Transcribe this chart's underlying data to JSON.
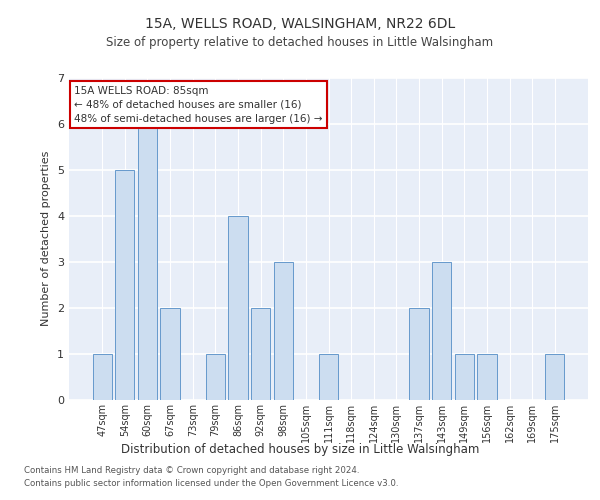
{
  "title_line1": "15A, WELLS ROAD, WALSINGHAM, NR22 6DL",
  "title_line2": "Size of property relative to detached houses in Little Walsingham",
  "xlabel": "Distribution of detached houses by size in Little Walsingham",
  "ylabel": "Number of detached properties",
  "categories": [
    "47sqm",
    "54sqm",
    "60sqm",
    "67sqm",
    "73sqm",
    "79sqm",
    "86sqm",
    "92sqm",
    "98sqm",
    "105sqm",
    "111sqm",
    "118sqm",
    "124sqm",
    "130sqm",
    "137sqm",
    "143sqm",
    "149sqm",
    "156sqm",
    "162sqm",
    "169sqm",
    "175sqm"
  ],
  "values": [
    1,
    5,
    6,
    2,
    0,
    1,
    4,
    2,
    3,
    0,
    1,
    0,
    0,
    0,
    2,
    3,
    1,
    1,
    0,
    0,
    1
  ],
  "highlight_index": 6,
  "bar_color": "#ccddf0",
  "bar_edge_color": "#6699cc",
  "bg_color": "#e8eef8",
  "grid_color": "#ffffff",
  "ylim": [
    0,
    7
  ],
  "yticks": [
    0,
    1,
    2,
    3,
    4,
    5,
    6,
    7
  ],
  "annotation_title": "15A WELLS ROAD: 85sqm",
  "annotation_line1": "← 48% of detached houses are smaller (16)",
  "annotation_line2": "48% of semi-detached houses are larger (16) →",
  "annotation_box_color": "#ffffff",
  "annotation_box_edge_color": "#cc0000",
  "footnote1": "Contains HM Land Registry data © Crown copyright and database right 2024.",
  "footnote2": "Contains public sector information licensed under the Open Government Licence v3.0."
}
